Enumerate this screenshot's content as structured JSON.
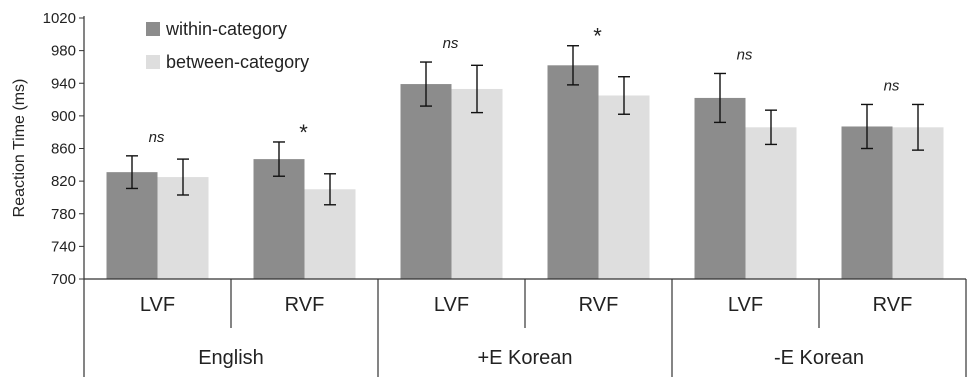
{
  "chart_data": {
    "type": "bar",
    "title": "",
    "xlabel": "",
    "ylabel": "Reaction Time (ms)",
    "ylim": [
      700,
      1020
    ],
    "yticks": [
      700,
      740,
      780,
      820,
      860,
      900,
      940,
      980,
      1020
    ],
    "grid": false,
    "legend_position": "top-left",
    "categories": [
      "LVF",
      "RVF",
      "LVF",
      "RVF",
      "LVF",
      "RVF"
    ],
    "groups": [
      "English",
      "+E Korean",
      "-E Korean"
    ],
    "series": [
      {
        "name": "within-category",
        "color": "#8c8c8c",
        "values": [
          831,
          847,
          939,
          962,
          922,
          887
        ],
        "error": [
          20,
          21,
          27,
          24,
          30,
          27
        ]
      },
      {
        "name": "between-category",
        "color": "#dedede",
        "values": [
          825,
          810,
          933,
          925,
          886,
          886
        ],
        "error": [
          22,
          19,
          29,
          23,
          21,
          28
        ]
      }
    ],
    "annotations": [
      "ns",
      "*",
      "ns",
      "*",
      "ns",
      "ns"
    ]
  }
}
